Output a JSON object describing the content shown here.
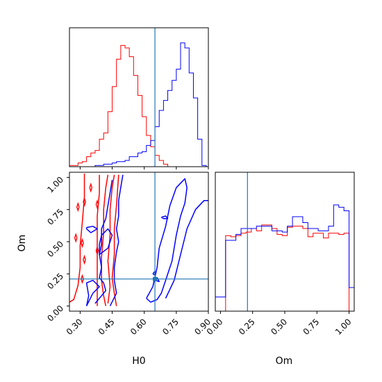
{
  "chart_data": {
    "type": "corner",
    "parameters": [
      "H0",
      "Om"
    ],
    "truth": {
      "H0": 0.65,
      "Om": 0.21
    },
    "colors": {
      "truth": "#1f77b4",
      "series_a": "#ff0000",
      "series_b": "#0000ff"
    },
    "grid": false,
    "panels": {
      "h0_hist": {
        "xlim": [
          0.25,
          0.9
        ],
        "bins": [
          0.25,
          0.27,
          0.29,
          0.31,
          0.33,
          0.35,
          0.37,
          0.39,
          0.41,
          0.43,
          0.45,
          0.47,
          0.49,
          0.51,
          0.53,
          0.55,
          0.57,
          0.59,
          0.61,
          0.63,
          0.65,
          0.67,
          0.69,
          0.71,
          0.73,
          0.75,
          0.77,
          0.79,
          0.81,
          0.83,
          0.85,
          0.87,
          0.89
        ],
        "series_a": [
          0.01,
          0.01,
          0.03,
          0.04,
          0.08,
          0.11,
          0.13,
          0.22,
          0.27,
          0.44,
          0.64,
          0.86,
          0.97,
          0.95,
          0.88,
          0.73,
          0.57,
          0.4,
          0.25,
          0.16,
          0.09,
          0.05,
          0.02,
          0,
          0,
          0,
          0,
          0,
          0,
          0,
          0,
          0
        ],
        "series_b": [
          0,
          0,
          0,
          0,
          0,
          0,
          0.01,
          0.01,
          0.02,
          0.02,
          0.03,
          0.04,
          0.04,
          0.05,
          0.08,
          0.08,
          0.11,
          0.12,
          0.17,
          0.21,
          0.32,
          0.45,
          0.53,
          0.61,
          0.69,
          0.78,
          0.99,
          0.95,
          0.75,
          0.55,
          0.22,
          0.01
        ]
      },
      "om_hist": {
        "xlim": [
          -0.04,
          1.04
        ],
        "bins": [
          -0.04,
          0,
          0.04,
          0.08,
          0.12,
          0.16,
          0.2,
          0.24,
          0.28,
          0.32,
          0.36,
          0.4,
          0.44,
          0.48,
          0.52,
          0.56,
          0.6,
          0.64,
          0.68,
          0.72,
          0.76,
          0.8,
          0.84,
          0.88,
          0.92,
          0.96,
          1.0,
          1.04
        ],
        "series_a": [
          0,
          0,
          0.64,
          0.63,
          0.64,
          0.66,
          0.67,
          0.7,
          0.68,
          0.73,
          0.73,
          0.7,
          0.65,
          0.64,
          0.71,
          0.72,
          0.72,
          0.7,
          0.63,
          0.66,
          0.66,
          0.62,
          0.66,
          0.66,
          0.65,
          0.66,
          0
        ],
        "series_b": [
          0.12,
          0.12,
          0.6,
          0.6,
          0.65,
          0.7,
          0.7,
          0.7,
          0.72,
          0.72,
          0.72,
          0.68,
          0.68,
          0.67,
          0.72,
          0.8,
          0.8,
          0.75,
          0.7,
          0.7,
          0.68,
          0.68,
          0.72,
          0.9,
          0.88,
          0.85,
          0.2
        ]
      }
    },
    "contours": {
      "series_a": [
        [
          [
            0.24,
            0.02
          ],
          [
            0.27,
            0.05
          ],
          [
            0.29,
            0.16
          ],
          [
            0.3,
            0.3
          ],
          [
            0.3,
            0.47
          ],
          [
            0.31,
            0.65
          ],
          [
            0.32,
            0.85
          ],
          [
            0.32,
            1.03
          ]
        ],
        [
          [
            0.42,
            0.0
          ],
          [
            0.41,
            0.08
          ],
          [
            0.4,
            0.2
          ],
          [
            0.4,
            0.38
          ],
          [
            0.41,
            0.57
          ],
          [
            0.41,
            0.75
          ],
          [
            0.42,
            0.92
          ],
          [
            0.43,
            1.02
          ]
        ],
        [
          [
            0.38,
            0.0
          ],
          [
            0.38,
            0.12
          ],
          [
            0.38,
            0.3
          ],
          [
            0.38,
            0.5
          ],
          [
            0.38,
            0.7
          ],
          [
            0.39,
            0.88
          ],
          [
            0.39,
            1.02
          ]
        ],
        [
          [
            0.47,
            0.0
          ],
          [
            0.46,
            0.1
          ],
          [
            0.45,
            0.22
          ],
          [
            0.46,
            0.4
          ],
          [
            0.46,
            0.6
          ],
          [
            0.47,
            0.78
          ],
          [
            0.48,
            1.02
          ]
        ],
        [
          [
            0.43,
            0.02
          ],
          [
            0.44,
            0.15
          ],
          [
            0.43,
            0.35
          ],
          [
            0.44,
            0.55
          ],
          [
            0.44,
            0.75
          ],
          [
            0.45,
            0.92
          ],
          [
            0.46,
            1.02
          ]
        ]
      ],
      "series_b": [
        [
          [
            0.33,
            0.0
          ],
          [
            0.36,
            0.1
          ],
          [
            0.39,
            0.15
          ],
          [
            0.36,
            0.2
          ],
          [
            0.33,
            0.18
          ],
          [
            0.34,
            0.08
          ],
          [
            0.33,
            0.0
          ]
        ],
        [
          [
            0.37,
            0.02
          ],
          [
            0.4,
            0.08
          ],
          [
            0.42,
            0.12
          ],
          [
            0.41,
            0.18
          ],
          [
            0.39,
            0.22
          ],
          [
            0.4,
            0.3
          ],
          [
            0.39,
            0.4
          ],
          [
            0.4,
            0.48
          ],
          [
            0.4,
            0.6
          ],
          [
            0.42,
            0.68
          ],
          [
            0.43,
            0.78
          ],
          [
            0.44,
            0.88
          ],
          [
            0.45,
            0.98
          ]
        ],
        [
          [
            0.44,
            0.0
          ],
          [
            0.47,
            0.1
          ],
          [
            0.46,
            0.2
          ],
          [
            0.46,
            0.3
          ],
          [
            0.47,
            0.42
          ],
          [
            0.48,
            0.5
          ],
          [
            0.47,
            0.6
          ],
          [
            0.48,
            0.7
          ],
          [
            0.48,
            0.82
          ],
          [
            0.49,
            0.92
          ],
          [
            0.5,
            1.02
          ]
        ],
        [
          [
            0.39,
            0.4
          ],
          [
            0.43,
            0.45
          ],
          [
            0.45,
            0.55
          ],
          [
            0.43,
            0.6
          ],
          [
            0.4,
            0.55
          ],
          [
            0.39,
            0.48
          ],
          [
            0.39,
            0.4
          ]
        ],
        [
          [
            0.33,
            0.61
          ],
          [
            0.36,
            0.62
          ],
          [
            0.38,
            0.6
          ],
          [
            0.35,
            0.57
          ],
          [
            0.33,
            0.6
          ],
          [
            0.33,
            0.61
          ]
        ],
        [
          [
            0.61,
            0.06
          ],
          [
            0.64,
            0.15
          ],
          [
            0.66,
            0.3
          ],
          [
            0.67,
            0.45
          ],
          [
            0.7,
            0.62
          ],
          [
            0.72,
            0.78
          ],
          [
            0.75,
            0.92
          ],
          [
            0.79,
            0.99
          ],
          [
            0.8,
            0.92
          ],
          [
            0.79,
            0.8
          ],
          [
            0.77,
            0.7
          ],
          [
            0.75,
            0.55
          ],
          [
            0.73,
            0.35
          ],
          [
            0.7,
            0.2
          ],
          [
            0.68,
            0.1
          ],
          [
            0.66,
            0.05
          ],
          [
            0.63,
            0.03
          ],
          [
            0.61,
            0.06
          ]
        ],
        [
          [
            0.7,
            0.06
          ],
          [
            0.74,
            0.2
          ],
          [
            0.77,
            0.4
          ],
          [
            0.8,
            0.6
          ],
          [
            0.84,
            0.75
          ],
          [
            0.88,
            0.82
          ],
          [
            0.91,
            0.82
          ]
        ],
        [
          [
            0.64,
            0.25
          ],
          [
            0.65,
            0.27
          ],
          [
            0.65,
            0.24
          ],
          [
            0.64,
            0.25
          ]
        ],
        [
          [
            0.65,
            0.2
          ],
          [
            0.66,
            0.22
          ],
          [
            0.67,
            0.19
          ],
          [
            0.65,
            0.2
          ]
        ],
        [
          [
            0.68,
            0.69
          ],
          [
            0.7,
            0.7
          ],
          [
            0.71,
            0.68
          ],
          [
            0.69,
            0.68
          ],
          [
            0.68,
            0.69
          ]
        ]
      ],
      "series_a_diamonds": [
        [
          0.32,
          0.81
        ],
        [
          0.29,
          0.77
        ],
        [
          0.28,
          0.53
        ],
        [
          0.31,
          0.49
        ],
        [
          0.32,
          0.36
        ],
        [
          0.38,
          0.79
        ],
        [
          0.38,
          0.43
        ],
        [
          0.31,
          0.21
        ],
        [
          0.35,
          0.92
        ]
      ]
    },
    "axes": {
      "main": {
        "xlabel": "H0",
        "ylabel": "Om",
        "xlim": [
          0.25,
          0.9
        ],
        "ylim": [
          -0.04,
          1.04
        ],
        "xticks": [
          0.3,
          0.45,
          0.6,
          0.75,
          0.9
        ],
        "xticklabels": [
          "0.30",
          "0.45",
          "0.60",
          "0.75",
          "0.90"
        ],
        "yticks": [
          0.0,
          0.25,
          0.5,
          0.75,
          1.0
        ],
        "yticklabels": [
          "0.00",
          "0.25",
          "0.50",
          "0.75",
          "1.00"
        ]
      },
      "om": {
        "xlabel": "Om",
        "xticks": [
          0.0,
          0.25,
          0.5,
          0.75,
          1.0
        ],
        "xticklabels": [
          "0.00",
          "0.25",
          "0.50",
          "0.75",
          "1.00"
        ]
      }
    }
  }
}
